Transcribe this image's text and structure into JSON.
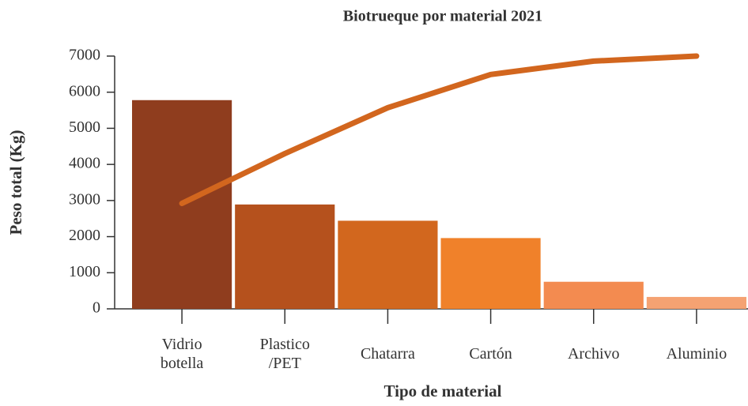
{
  "chart_data": {
    "type": "bar-line",
    "title": "Biotrueque por material 2021",
    "x_label": "Tipo de material",
    "y_label": "Peso total (Kg)",
    "categories": [
      "Vidrio\nbotella",
      "Plastico\n/PET",
      "Chatarra",
      "Cartón",
      "Archivo",
      "Aluminio"
    ],
    "bars": {
      "values": [
        5780,
        2890,
        2440,
        1960,
        750,
        330
      ],
      "colors": [
        "#8f3d1e",
        "#b5511d",
        "#d2671e",
        "#f0812a",
        "#f38b50",
        "#f5a272"
      ]
    },
    "line": {
      "values": [
        2920,
        4300,
        5570,
        6490,
        6860,
        7000
      ],
      "color": "#d2661e"
    },
    "ylim": [
      0,
      7000
    ],
    "yticks": [
      0,
      1000,
      2000,
      3000,
      4000,
      5000,
      6000,
      7000
    ]
  }
}
